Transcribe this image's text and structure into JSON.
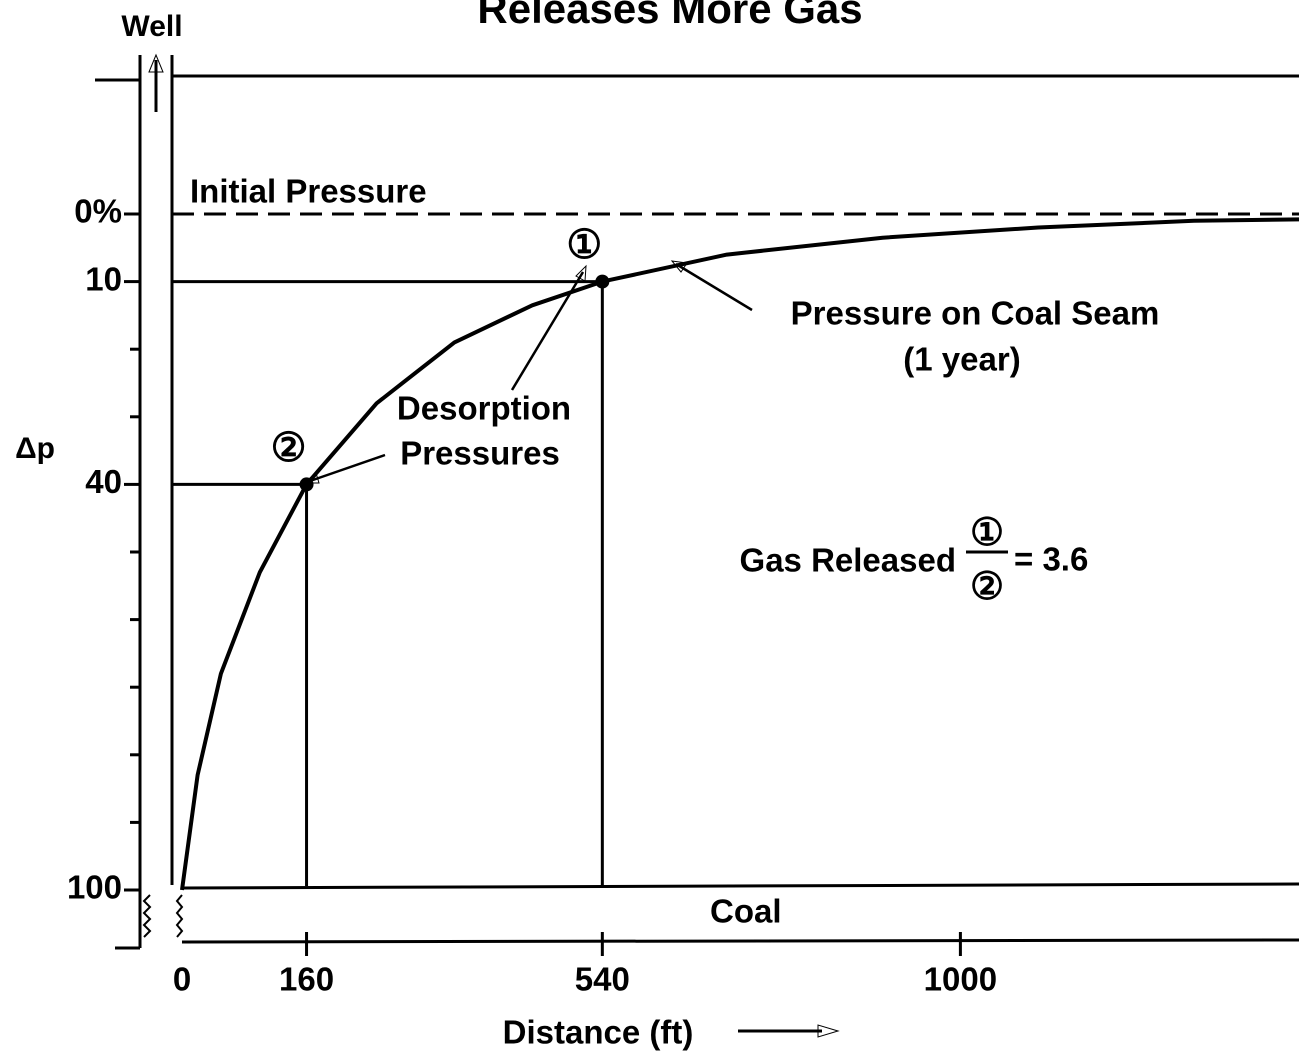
{
  "chart_data": {
    "type": "line",
    "title": "Releases More Gas",
    "well_label": "Well",
    "x_label": "Distance (ft)",
    "y_label": "Δp",
    "xlim": [
      0,
      1435
    ],
    "xticks": [
      0,
      160,
      540,
      1000
    ],
    "ylim": [
      0,
      100
    ],
    "y_inverted": true,
    "yticks": [
      {
        "value": 0,
        "label": "0%"
      },
      10,
      40,
      100
    ],
    "minor_yticks": [
      20,
      30,
      50,
      60,
      70,
      80,
      90
    ],
    "reference_line": {
      "label": "Initial Pressure",
      "value": 0,
      "dashed": true
    },
    "layer_label": "Coal",
    "series": [
      {
        "name": "Pressure on Coal Seam",
        "color": "#000000",
        "x": [
          0,
          20,
          50,
          100,
          160,
          250,
          350,
          450,
          540,
          700,
          900,
          1100,
          1300,
          1435
        ],
        "values": [
          100,
          83,
          68,
          53,
          40,
          28,
          19,
          13.5,
          10,
          6,
          3.5,
          2,
          1,
          0.8
        ]
      }
    ],
    "series_note": "(1 year)",
    "points": [
      {
        "label": "①",
        "x": 540,
        "y": 10
      },
      {
        "label": "②",
        "x": 160,
        "y": 40
      }
    ],
    "points_label": [
      "Desorption",
      "Pressures"
    ],
    "gas_released": {
      "label": "Gas Released",
      "numerator": "①",
      "denominator": "②",
      "result": "= 3.6"
    }
  }
}
